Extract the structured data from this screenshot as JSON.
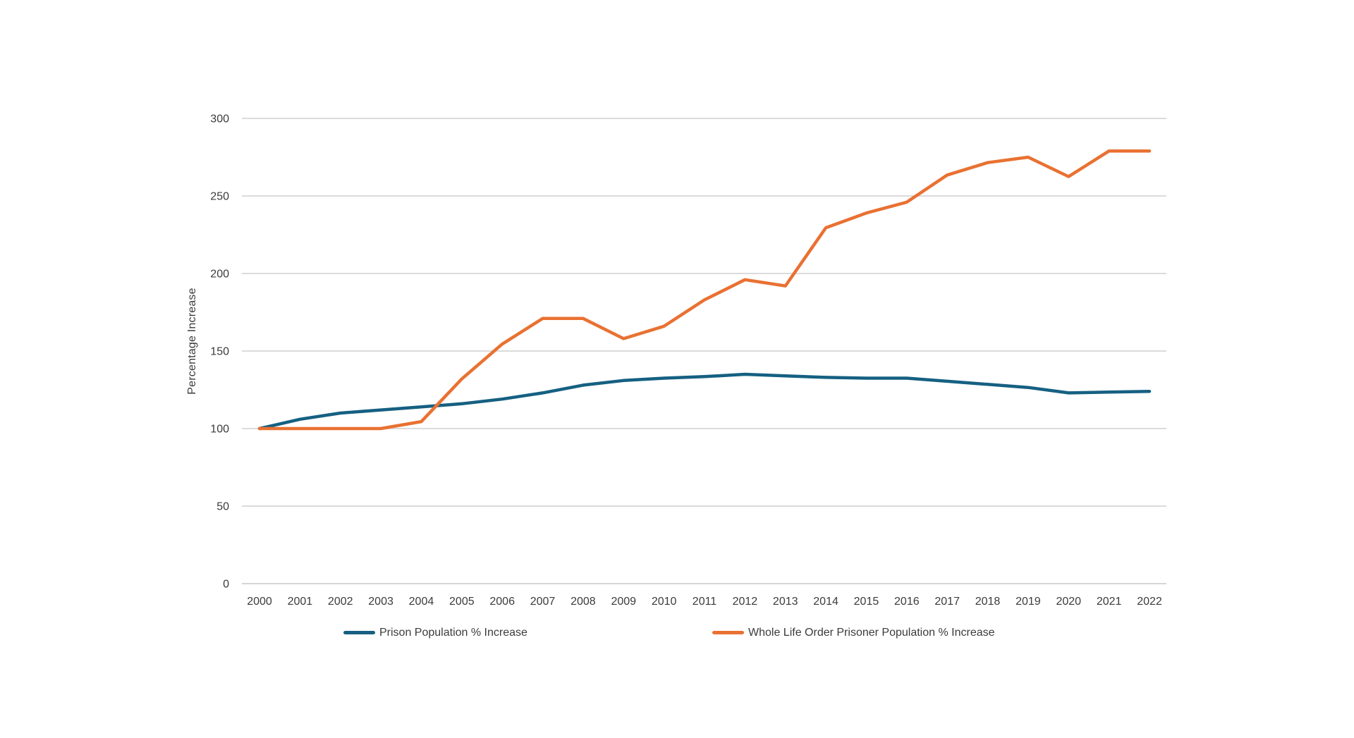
{
  "page": {
    "background_color": "#ffffff"
  },
  "chart_data": {
    "type": "line",
    "title": "",
    "xlabel": "",
    "ylabel": "Percentage Increase",
    "categories": [
      2000,
      2001,
      2002,
      2003,
      2004,
      2005,
      2006,
      2007,
      2008,
      2009,
      2010,
      2011,
      2012,
      2013,
      2014,
      2015,
      2016,
      2017,
      2018,
      2019,
      2020,
      2021,
      2022
    ],
    "yticks": [
      0,
      50,
      100,
      150,
      200,
      250,
      300
    ],
    "ylim": [
      0,
      300
    ],
    "grid": "horizontal",
    "legend_position": "bottom",
    "series": [
      {
        "name": "Prison Population % Increase",
        "color": "#156082",
        "values": [
          100,
          106,
          110,
          112,
          114,
          116,
          119,
          123,
          128,
          131,
          132.5,
          133.5,
          135,
          134,
          133,
          132.5,
          132.5,
          130.5,
          128.5,
          126.5,
          123,
          123.5,
          124
        ]
      },
      {
        "name": "Whole Life Order Prisoner Population % Increase",
        "color": "#E97132",
        "values": [
          100,
          100,
          100,
          100,
          104.5,
          132,
          154.5,
          171,
          171,
          158,
          166,
          183,
          196,
          192,
          229.5,
          239,
          246,
          263.5,
          271.5,
          275,
          262.5,
          279,
          279
        ]
      }
    ],
    "style": {
      "gridline_color": "#DBDBDB",
      "axis_line_color": "#D6D6D6",
      "tick_label_color": "#3b3b3b",
      "line_width": 4.5
    }
  }
}
